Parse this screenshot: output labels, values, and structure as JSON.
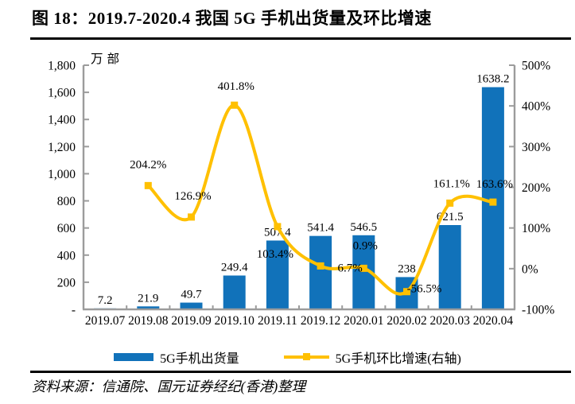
{
  "title": "图 18：2019.7-2020.4 我国 5G 手机出货量及环比增速",
  "source": "资料来源：信通院、国元证券经纪(香港)整理",
  "colors": {
    "bar": "#1172ba",
    "line": "#ffc000",
    "axis": "#9c9c9c",
    "text": "#000000",
    "rule": "#000000"
  },
  "legend": {
    "items": [
      {
        "label": "5G手机出货量"
      },
      {
        "label": "5G手机环比增速(右轴)"
      }
    ]
  },
  "chart_data": {
    "type": "bar+line dual-axis combo",
    "title": "2019.7-2020.4 我国 5G 手机出货量及环比增速",
    "categories": [
      "2019.07",
      "2019.08",
      "2019.09",
      "2019.10",
      "2019.11",
      "2019.12",
      "2020.01",
      "2020.02",
      "2020.03",
      "2020.04"
    ],
    "left_axis": {
      "unit": "万部",
      "min": 0,
      "max": 1800,
      "tick_values": [
        1800,
        1600,
        1400,
        1200,
        1000,
        800,
        600,
        400,
        200,
        0
      ],
      "tick_labels": [
        "1,800",
        "1,600",
        "1,400",
        "1,200",
        "1,000",
        "800",
        "600",
        "400",
        "200",
        "-"
      ]
    },
    "right_axis": {
      "min": -100,
      "max": 500,
      "tick_values": [
        500,
        400,
        300,
        200,
        100,
        0,
        -100
      ],
      "tick_labels": [
        "500%",
        "400%",
        "300%",
        "200%",
        "100%",
        "0%",
        "-100%"
      ]
    },
    "grid": false,
    "legend_position": "bottom",
    "series": [
      {
        "name": "5G手机出货量",
        "type": "bar",
        "axis": "left",
        "values": [
          7.2,
          21.9,
          49.7,
          249.4,
          507.4,
          541.4,
          546.5,
          238,
          621.5,
          1638.2
        ],
        "data_labels": [
          "7.2",
          "21.9",
          "49.7",
          "249.4",
          "507.4",
          "541.4",
          "546.5",
          "238",
          "621.5",
          "1638.2"
        ]
      },
      {
        "name": "5G手机环比增速(右轴)",
        "type": "line",
        "axis": "right",
        "smooth": true,
        "values": [
          null,
          204.2,
          126.9,
          401.8,
          103.4,
          6.7,
          0.9,
          -56.5,
          161.1,
          163.6
        ],
        "data_labels": [
          null,
          "204.2%",
          "126.9%",
          "401.8%",
          "103.4%",
          "6.7%",
          "0.9%",
          "-56.5%",
          "161.1%",
          "163.6%"
        ],
        "label_offsets": [
          null,
          [
            0,
            -22
          ],
          [
            2,
            -22
          ],
          [
            2,
            -19
          ],
          [
            -3,
            39
          ],
          [
            37,
            7
          ],
          [
            2,
            -24
          ],
          [
            22,
            1
          ],
          [
            2,
            -20
          ],
          [
            2,
            -18
          ]
        ]
      }
    ]
  }
}
